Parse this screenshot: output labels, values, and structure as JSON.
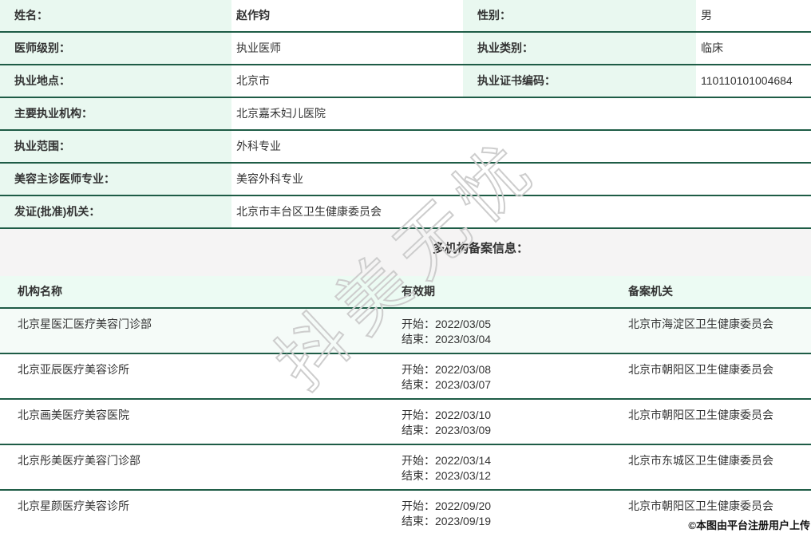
{
  "info_rows": [
    {
      "label": "姓名：",
      "value": "赵作钧",
      "label2": "性别：",
      "value2": "男"
    },
    {
      "label": "医师级别：",
      "value": "执业医师",
      "label2": "执业类别：",
      "value2": "临床"
    },
    {
      "label": "执业地点：",
      "value": "北京市",
      "label2": "执业证书编码：",
      "value2": "110110101004684"
    },
    {
      "label": "主要执业机构：",
      "value": "北京嘉禾妇儿医院"
    },
    {
      "label": "执业范围：",
      "value": "外科专业"
    },
    {
      "label": "美容主诊医师专业：",
      "value": "美容外科专业"
    },
    {
      "label": "发证(批准)机关：",
      "value": "北京市丰台区卫生健康委员会"
    }
  ],
  "section_title": "多机构备案信息：",
  "filing_table": {
    "headers": [
      "机构名称",
      "有效期",
      "备案机关"
    ],
    "rows": [
      {
        "org": "北京星医汇医疗美容门诊部",
        "start": "开始：2022/03/05",
        "end": "结束：2023/03/04",
        "authority": "北京市海淀区卫生健康委员会"
      },
      {
        "org": "北京亚辰医疗美容诊所",
        "start": "开始：2022/03/08",
        "end": "结束：2023/03/07",
        "authority": "北京市朝阳区卫生健康委员会"
      },
      {
        "org": "北京画美医疗美容医院",
        "start": "开始：2022/03/10",
        "end": "结束：2023/03/09",
        "authority": "北京市朝阳区卫生健康委员会"
      },
      {
        "org": "北京彤美医疗美容门诊部",
        "start": "开始：2022/03/14",
        "end": "结束：2023/03/12",
        "authority": "北京市东城区卫生健康委员会"
      },
      {
        "org": "北京星颜医疗美容诊所",
        "start": "开始：2022/09/20",
        "end": "结束：2023/09/19",
        "authority": "北京市朝阳区卫生健康委员会"
      }
    ]
  },
  "watermark": "抖美无忧",
  "footer_stamp": "©本图由平台注册用户上传",
  "colors": {
    "border_green": "#1e5c46",
    "label_bg": "#e9f8f0",
    "table_header_bg": "#ecfbf3",
    "band_bg": "#f5f4f4",
    "row_tint": "#f5fbf8"
  }
}
